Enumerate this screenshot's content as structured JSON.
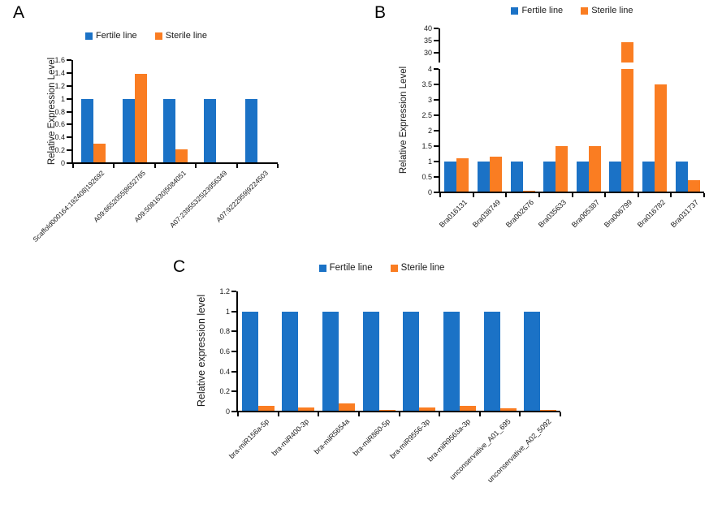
{
  "figure": {
    "colors": {
      "fertile": "#1B72C6",
      "sterile": "#FA7D22"
    },
    "legend_labels": [
      "Fertile line",
      "Sterile line"
    ]
  },
  "chart_data": [
    {
      "panel": "A",
      "type": "bar",
      "title": "",
      "xlabel": "",
      "ylabel": "Relative Expression Level",
      "legend_position": "top",
      "grid": false,
      "categories": [
        "Scaffold000164:192408|192692",
        "A09:8652055|8652785",
        "A09:5081630|5084051",
        "A07:23955325|23956349",
        "A07:9222959|9224503"
      ],
      "series": [
        {
          "name": "Fertile line",
          "color": "#1B72C6",
          "values": [
            1,
            1,
            1,
            1,
            1
          ]
        },
        {
          "name": "Sterile line",
          "color": "#FA7D22",
          "values": [
            0.3,
            1.38,
            0.22,
            0,
            0
          ]
        }
      ],
      "segments": [
        {
          "ylim": [
            0,
            1.6
          ],
          "yticks": [
            "0",
            "0.2",
            "0.4",
            "0.6",
            "0.8",
            "1",
            "1.2",
            "1.4",
            "1.6"
          ]
        }
      ]
    },
    {
      "panel": "B",
      "type": "bar",
      "title": "",
      "xlabel": "",
      "ylabel": "Relative Expression Level",
      "legend_position": "top",
      "grid": false,
      "axis_break": true,
      "break_between": [
        4,
        30
      ],
      "categories": [
        "Bra016131",
        "Bra038749",
        "Bra002676",
        "Bra035633",
        "Bra005387",
        "Bra006799",
        "Bra016782",
        "Bra031737"
      ],
      "series": [
        {
          "name": "Fertile line",
          "color": "#1B72C6",
          "values": [
            1,
            1,
            1,
            1,
            1,
            1,
            1,
            1
          ]
        },
        {
          "name": "Sterile line",
          "color": "#FA7D22",
          "values": [
            1.1,
            1.15,
            0.05,
            1.5,
            1.5,
            34.5,
            3.5,
            0.4
          ]
        }
      ],
      "segments": [
        {
          "ylim": [
            0,
            4
          ],
          "yticks": [
            "0",
            "0.5",
            "1",
            "1.5",
            "2",
            "2.5",
            "3",
            "3.5",
            "4"
          ]
        },
        {
          "ylim": [
            30,
            40
          ],
          "yticks": [
            "30",
            "35",
            "40"
          ]
        }
      ]
    },
    {
      "panel": "C",
      "type": "bar",
      "title": "",
      "xlabel": "",
      "ylabel": "Relative expression level",
      "legend_position": "top",
      "grid": false,
      "categories": [
        "bra-miR156a-5p",
        "bra-miR400-3p",
        "bra-miR5654a",
        "bra-miR860-5p",
        "bra-miR9556-3p",
        "bra-miR9563a-3p",
        "unconservative_A01_695",
        "unconservative_A02_5092"
      ],
      "series": [
        {
          "name": "Fertile line",
          "color": "#1B72C6",
          "values": [
            1,
            1,
            1,
            1,
            1,
            1,
            1,
            1
          ]
        },
        {
          "name": "Sterile line",
          "color": "#FA7D22",
          "values": [
            0.06,
            0.04,
            0.08,
            0.02,
            0.04,
            0.06,
            0.03,
            0.02
          ]
        }
      ],
      "segments": [
        {
          "ylim": [
            0,
            1.2
          ],
          "yticks": [
            "0",
            "0.2",
            "0.4",
            "0.6",
            "0.8",
            "1",
            "1.2"
          ]
        }
      ]
    }
  ]
}
